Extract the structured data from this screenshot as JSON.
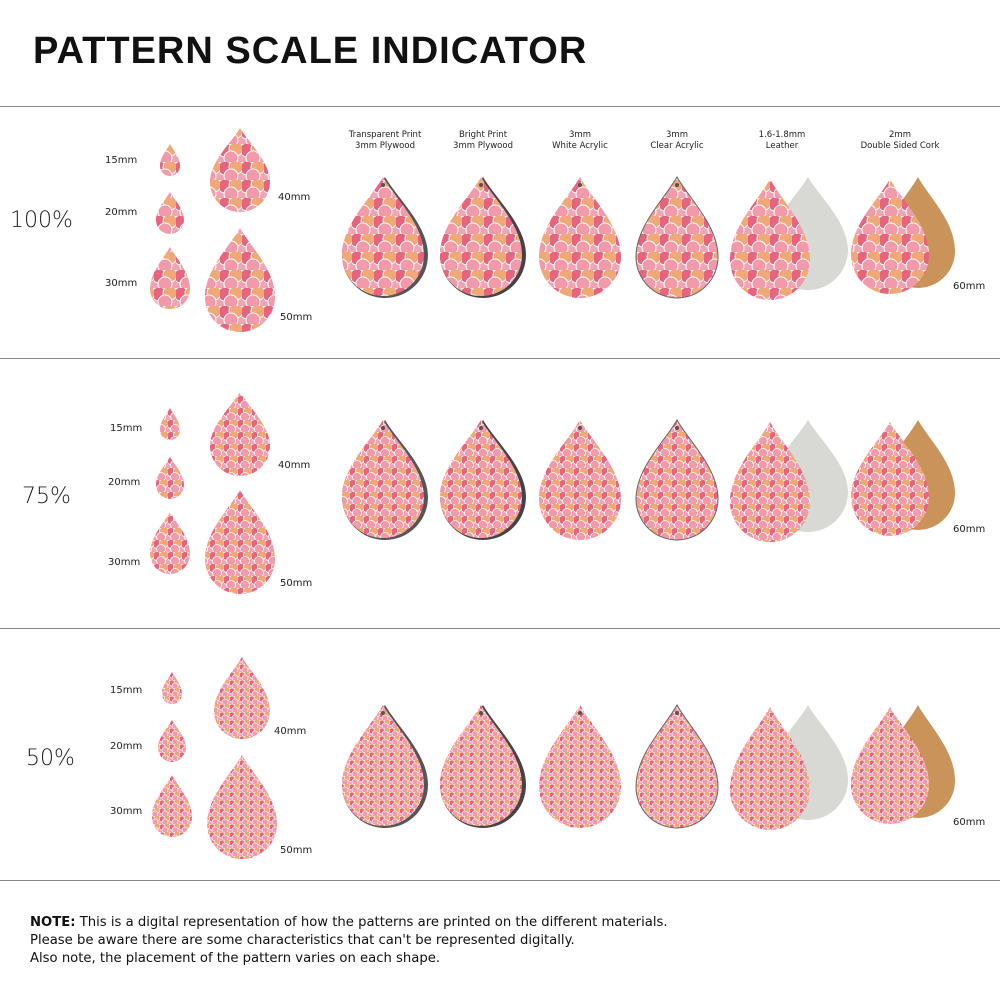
{
  "title": "PATTERN SCALE INDICATOR",
  "materials": [
    {
      "line1": "Transparent Print",
      "line2": "3mm Plywood"
    },
    {
      "line1": "Bright Print",
      "line2": "3mm Plywood"
    },
    {
      "line1": "3mm",
      "line2": "White Acrylic"
    },
    {
      "line1": "3mm",
      "line2": "Clear Acrylic"
    },
    {
      "line1": "1.6-1.8mm",
      "line2": "Leather"
    },
    {
      "line1": "2mm",
      "line2": "Double Sided Cork"
    }
  ],
  "sections": [
    {
      "scale": "100%",
      "sizes": [
        "15mm",
        "20mm",
        "30mm",
        "40mm",
        "50mm"
      ],
      "material_size": "60mm"
    },
    {
      "scale": "75%",
      "sizes": [
        "15mm",
        "20mm",
        "30mm",
        "40mm",
        "50mm"
      ],
      "material_size": "60mm"
    },
    {
      "scale": "50%",
      "sizes": [
        "15mm",
        "20mm",
        "30mm",
        "40mm",
        "50mm"
      ],
      "material_size": "60mm"
    }
  ],
  "note": {
    "label": "NOTE:",
    "line1": "This is a digital representation of how the patterns are printed on the different materials.",
    "line2": "Please be aware there are some characteristics that can't be represented digitally.",
    "line3": "Also note, the placement of the pattern varies on each shape."
  },
  "colors": {
    "pink": "#e8637e",
    "light_pink": "#f4a3b2",
    "peach": "#eea977",
    "leather_back": "#d8d9d4",
    "cork": "#c9935a"
  }
}
